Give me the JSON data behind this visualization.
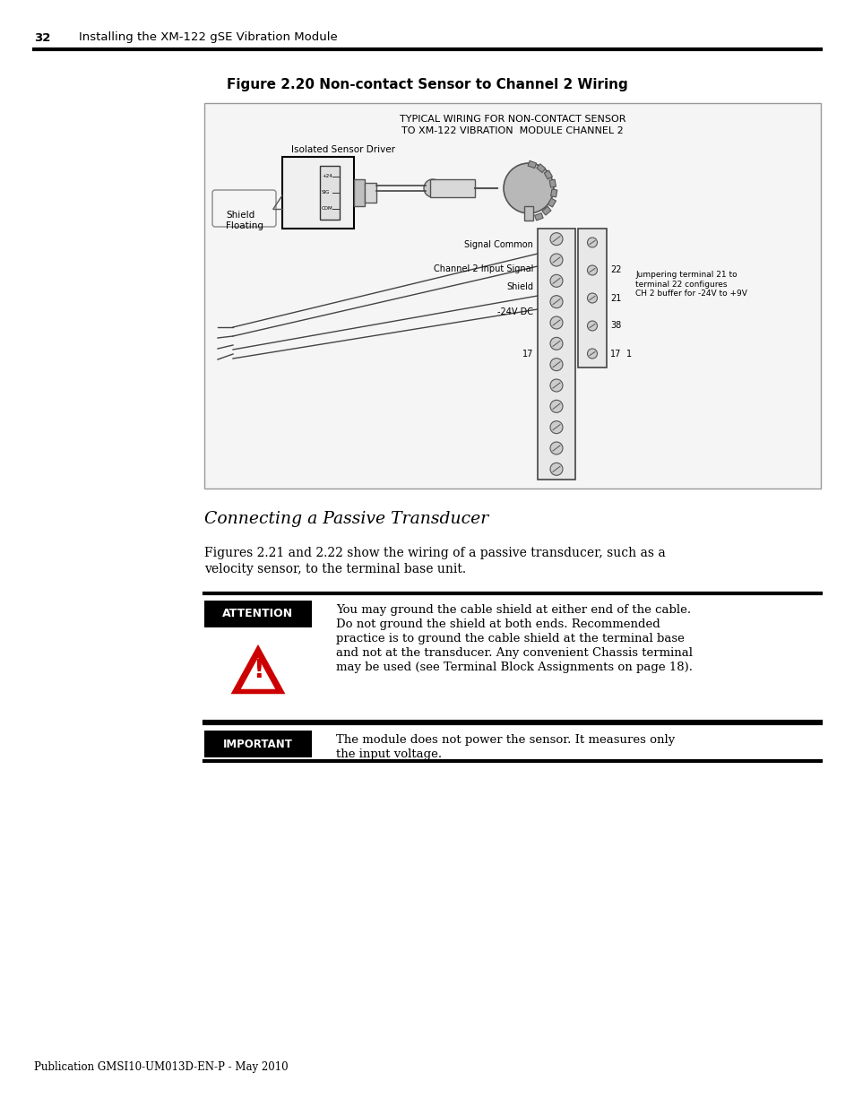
{
  "page_number": "32",
  "page_header": "Installing the XM-122 gSE Vibration Module",
  "figure_title": "Figure 2.20 Non-contact Sensor to Channel 2 Wiring",
  "figure_diagram_title_line1": "TYPICAL WIRING FOR NON-CONTACT SENSOR",
  "figure_diagram_title_line2": "TO XM-122 VIBRATION  MODULE CHANNEL 2",
  "section_heading": "Connecting a Passive Transducer",
  "body_text_line1": "Figures 2.21 and 2.22 show the wiring of a passive transducer, such as a",
  "body_text_line2": "velocity sensor, to the terminal base unit.",
  "attention_label": "ATTENTION",
  "attention_text_line1": "You may ground the cable shield at either end of the cable.",
  "attention_text_line2": "Do not ground the shield at both ends. Recommended",
  "attention_text_line3": "practice is to ground the cable shield at the terminal base",
  "attention_text_line4": "and not at the transducer. Any convenient Chassis terminal",
  "attention_text_line5": "may be used (see Terminal Block Assignments on page 18).",
  "important_label": "IMPORTANT",
  "important_text_line1": "The module does not power the sensor. It measures only",
  "important_text_line2": "the input voltage.",
  "footer_text": "Publication GMSI10-UM013D-EN-P - May 2010",
  "bg_color": "#ffffff",
  "text_color": "#000000",
  "attention_bg": "#000000",
  "attention_text_color": "#ffffff",
  "important_bg": "#000000",
  "important_text_color": "#ffffff",
  "warning_triangle_color": "#cc0000",
  "label_isolated_sensor": "Isolated Sensor Driver",
  "label_shield_floating_line1": "Shield",
  "label_shield_floating_line2": "Floating",
  "label_signal_common": "Signal Common",
  "label_ch2_input": "Channel 2 Input Signal",
  "label_shield": "Shield",
  "label_minus24v": "-24V DC",
  "label_jumpering": "Jumpering terminal 21 to\nterminal 22 configures\nCH 2 buffer for -24V to +9V"
}
